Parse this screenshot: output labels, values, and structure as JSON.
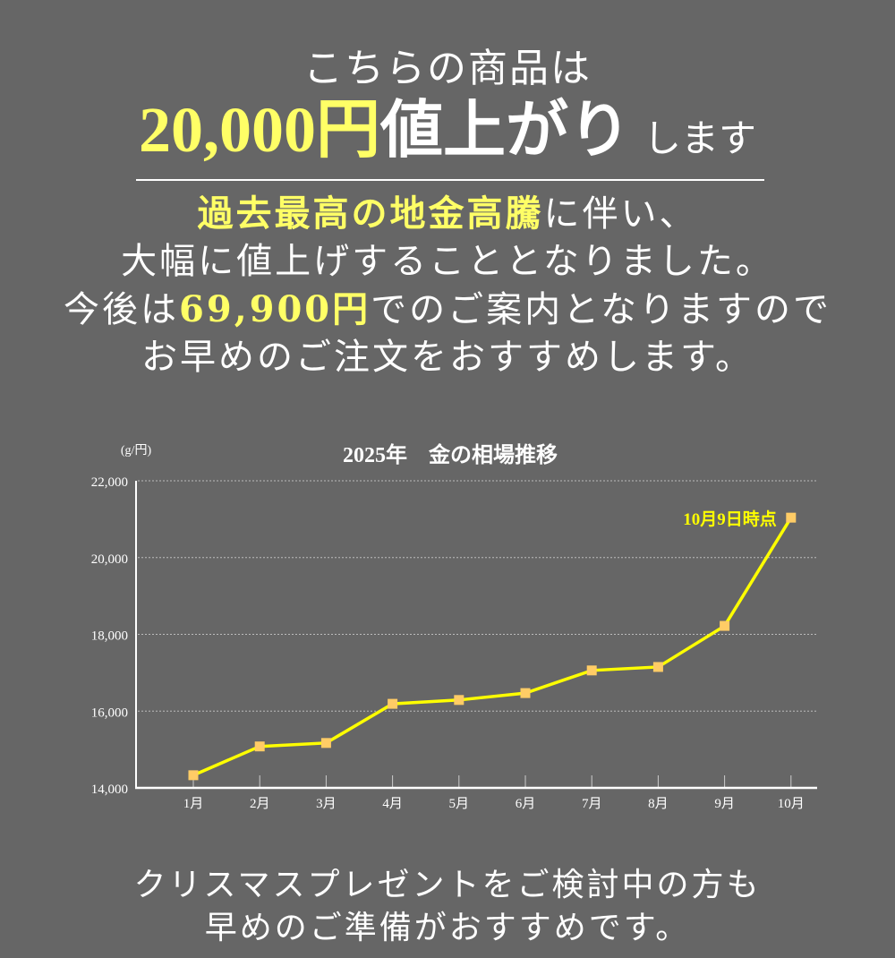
{
  "headline": {
    "line1": "こちらの商品は",
    "amount": "20,000円",
    "emphasis": "値上がり",
    "suffix": "します"
  },
  "body": {
    "line1_highlight": "過去最高の地金高騰",
    "line1_rest": "に伴い、",
    "line2": "大幅に値上げすることとなりました。",
    "line3_prefix": "今後は",
    "line3_price": "69,900円",
    "line3_rest": "でのご案内となりますので",
    "line4": "お早めのご注文をおすすめします。"
  },
  "chart_data": {
    "type": "line",
    "title": "2025年　金の相場推移",
    "ylabel": "(g/円)",
    "xlabel": "",
    "categories": [
      "1月",
      "2月",
      "3月",
      "4月",
      "5月",
      "6月",
      "7月",
      "8月",
      "9月",
      "10月"
    ],
    "series": [
      {
        "name": "金の相場",
        "values": [
          14330,
          15080,
          15170,
          16190,
          16290,
          16470,
          17060,
          17150,
          18220,
          21040
        ],
        "color": "#ffff00",
        "marker_color": "#ffcc66"
      }
    ],
    "yticks": [
      "14,000",
      "16,000",
      "18,000",
      "20,000",
      "22,000"
    ],
    "ylim": [
      14000,
      22000
    ],
    "grid": true,
    "legend": "none",
    "annotation": {
      "label": "10月9日時点",
      "at": "10月",
      "color": "#ffff00"
    }
  },
  "footer": {
    "line1": "クリスマスプレゼントをご検討中の方も",
    "line2": "早めのご準備がおすすめです。"
  }
}
